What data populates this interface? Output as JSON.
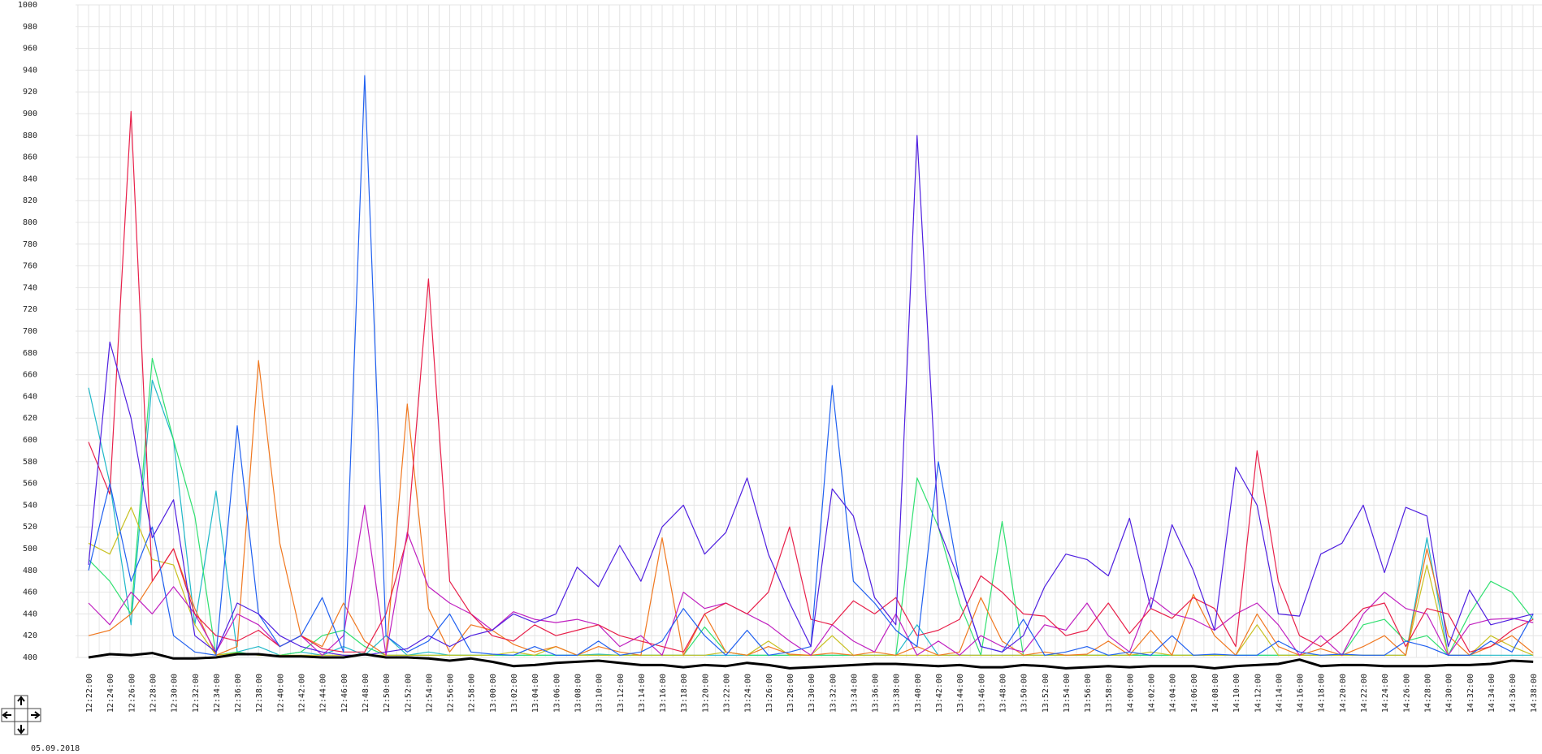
{
  "chart_data": {
    "type": "line",
    "date": "05.09.2018",
    "ylim": [
      400,
      1000
    ],
    "yticks": [
      400,
      420,
      440,
      460,
      480,
      500,
      520,
      540,
      560,
      580,
      600,
      620,
      640,
      660,
      680,
      700,
      720,
      740,
      760,
      780,
      800,
      820,
      840,
      860,
      880,
      900,
      920,
      940,
      960,
      980,
      1000
    ],
    "grid": true,
    "categories": [
      "12:22:00",
      "12:24:00",
      "12:26:00",
      "12:28:00",
      "12:30:00",
      "12:32:00",
      "12:34:00",
      "12:36:00",
      "12:38:00",
      "12:40:00",
      "12:42:00",
      "12:44:00",
      "12:46:00",
      "12:48:00",
      "12:50:00",
      "12:52:00",
      "12:54:00",
      "12:56:00",
      "12:58:00",
      "13:00:00",
      "13:02:00",
      "13:04:00",
      "13:06:00",
      "13:08:00",
      "13:10:00",
      "13:12:00",
      "13:14:00",
      "13:16:00",
      "13:18:00",
      "13:20:00",
      "13:22:00",
      "13:24:00",
      "13:26:00",
      "13:28:00",
      "13:30:00",
      "13:32:00",
      "13:34:00",
      "13:36:00",
      "13:38:00",
      "13:40:00",
      "13:42:00",
      "13:44:00",
      "13:46:00",
      "13:48:00",
      "13:50:00",
      "13:52:00",
      "13:54:00",
      "13:56:00",
      "13:58:00",
      "14:00:00",
      "14:02:00",
      "14:04:00",
      "14:06:00",
      "14:08:00",
      "14:10:00",
      "14:12:00",
      "14:14:00",
      "14:16:00",
      "14:18:00",
      "14:20:00",
      "14:22:00",
      "14:24:00",
      "14:26:00",
      "14:28:00",
      "14:30:00",
      "14:32:00",
      "14:34:00",
      "14:36:00",
      "14:38:00"
    ],
    "series": [
      {
        "color": "#20b8c8",
        "values": [
          648,
          560,
          430,
          655,
          600,
          430,
          553,
          405,
          410,
          402,
          405,
          402,
          410,
          402,
          420,
          402,
          405,
          402,
          402,
          402,
          402,
          402,
          402,
          402,
          403,
          402,
          402,
          402,
          402,
          402,
          402,
          402,
          402,
          402,
          402,
          402,
          402,
          402,
          402,
          430,
          402,
          402,
          402,
          402,
          402,
          402,
          402,
          402,
          402,
          402,
          402,
          402,
          402,
          402,
          402,
          402,
          402,
          402,
          402,
          402,
          402,
          402,
          402,
          510,
          402,
          402,
          402,
          402,
          402
        ]
      },
      {
        "color": "#30e070",
        "values": [
          490,
          470,
          440,
          675,
          600,
          530,
          402,
          405,
          402,
          402,
          405,
          420,
          425,
          410,
          402,
          402,
          402,
          402,
          402,
          402,
          402,
          402,
          402,
          402,
          402,
          402,
          402,
          402,
          402,
          428,
          405,
          402,
          402,
          402,
          402,
          402,
          402,
          402,
          402,
          565,
          520,
          450,
          402,
          525,
          402,
          402,
          402,
          402,
          402,
          402,
          402,
          402,
          402,
          402,
          402,
          402,
          402,
          402,
          402,
          402,
          430,
          435,
          415,
          420,
          402,
          440,
          470,
          460,
          435
        ]
      },
      {
        "color": "#c8c020",
        "values": [
          505,
          495,
          538,
          490,
          485,
          430,
          402,
          404,
          402,
          402,
          402,
          402,
          402,
          402,
          402,
          402,
          402,
          402,
          402,
          402,
          405,
          402,
          410,
          402,
          402,
          402,
          402,
          402,
          402,
          402,
          405,
          402,
          415,
          402,
          402,
          420,
          402,
          402,
          402,
          402,
          402,
          402,
          402,
          402,
          402,
          402,
          402,
          402,
          402,
          402,
          405,
          402,
          402,
          402,
          402,
          430,
          402,
          402,
          402,
          402,
          402,
          402,
          402,
          485,
          402,
          402,
          420,
          410,
          402
        ]
      },
      {
        "color": "#f07820",
        "values": [
          420,
          425,
          440,
          470,
          500,
          445,
          402,
          410,
          673,
          505,
          420,
          410,
          450,
          415,
          402,
          633,
          445,
          405,
          430,
          425,
          412,
          405,
          410,
          402,
          410,
          405,
          402,
          510,
          402,
          440,
          405,
          402,
          410,
          403,
          402,
          404,
          402,
          405,
          402,
          410,
          402,
          405,
          455,
          415,
          402,
          405,
          402,
          403,
          415,
          402,
          425,
          402,
          458,
          420,
          402,
          440,
          410,
          402,
          408,
          402,
          410,
          420,
          402,
          500,
          420,
          402,
          410,
          420,
          404
        ]
      },
      {
        "color": "#c020c0",
        "values": [
          450,
          430,
          460,
          440,
          465,
          440,
          405,
          440,
          430,
          410,
          420,
          402,
          420,
          540,
          402,
          515,
          465,
          450,
          440,
          425,
          442,
          435,
          432,
          435,
          430,
          410,
          420,
          402,
          460,
          445,
          450,
          440,
          430,
          415,
          402,
          430,
          415,
          405,
          440,
          402,
          415,
          402,
          420,
          410,
          405,
          430,
          425,
          450,
          420,
          405,
          455,
          440,
          435,
          425,
          440,
          450,
          430,
          402,
          420,
          402,
          440,
          460,
          445,
          440,
          402,
          430,
          435,
          436,
          432
        ]
      },
      {
        "color": "#e8204a",
        "values": [
          598,
          550,
          902,
          470,
          500,
          440,
          420,
          415,
          425,
          410,
          420,
          408,
          405,
          405,
          440,
          510,
          748,
          470,
          440,
          420,
          415,
          430,
          420,
          425,
          430,
          420,
          415,
          410,
          405,
          440,
          450,
          440,
          460,
          520,
          435,
          430,
          452,
          440,
          455,
          420,
          425,
          435,
          475,
          460,
          440,
          438,
          420,
          425,
          450,
          422,
          445,
          436,
          455,
          445,
          410,
          590,
          470,
          420,
          410,
          425,
          445,
          450,
          410,
          445,
          440,
          405,
          410,
          425,
          435
        ]
      },
      {
        "color": "#2060f0",
        "values": [
          480,
          560,
          470,
          520,
          420,
          405,
          402,
          613,
          440,
          410,
          420,
          455,
          405,
          935,
          420,
          405,
          415,
          440,
          405,
          403,
          402,
          410,
          402,
          402,
          415,
          402,
          405,
          415,
          445,
          420,
          402,
          425,
          402,
          405,
          410,
          650,
          470,
          450,
          425,
          410,
          580,
          470,
          410,
          405,
          435,
          402,
          405,
          410,
          402,
          405,
          402,
          420,
          402,
          403,
          402,
          402,
          415,
          405,
          402,
          403,
          402,
          402,
          415,
          410,
          402,
          402,
          415,
          405,
          440
        ]
      },
      {
        "color": "#5020e0",
        "values": [
          485,
          690,
          620,
          510,
          545,
          420,
          405,
          450,
          440,
          420,
          410,
          405,
          402,
          402,
          405,
          408,
          420,
          410,
          420,
          425,
          440,
          432,
          440,
          483,
          465,
          503,
          470,
          520,
          540,
          495,
          515,
          565,
          495,
          450,
          410,
          555,
          530,
          455,
          430,
          880,
          520,
          470,
          410,
          405,
          420,
          465,
          495,
          490,
          475,
          528,
          445,
          522,
          480,
          425,
          575,
          540,
          440,
          438,
          495,
          505,
          540,
          478,
          538,
          530,
          410,
          462,
          430,
          435,
          440
        ]
      },
      {
        "color": "#000000",
        "values": [
          400,
          403,
          402,
          404,
          399,
          399,
          400,
          403,
          403,
          401,
          401,
          400,
          400,
          403,
          400,
          400,
          399,
          397,
          399,
          396,
          392,
          393,
          395,
          396,
          397,
          395,
          393,
          393,
          391,
          393,
          392,
          395,
          393,
          390,
          391,
          392,
          393,
          394,
          394,
          393,
          392,
          393,
          391,
          391,
          393,
          392,
          390,
          391,
          392,
          391,
          392,
          392,
          392,
          390,
          392,
          393,
          394,
          398,
          392,
          393,
          393,
          392,
          392,
          392,
          393,
          393,
          394,
          397,
          396
        ]
      }
    ]
  }
}
